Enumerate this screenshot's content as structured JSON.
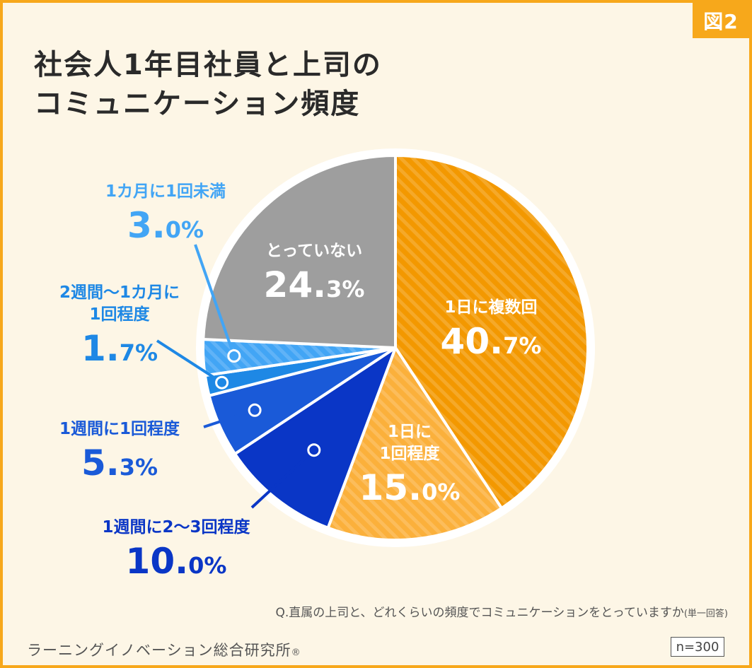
{
  "badge": "図2",
  "title_line1": "社会人1年目社員と上司の",
  "title_line2": "コミュニケーション頻度",
  "chart_data": {
    "type": "pie",
    "unit": "%",
    "slices": [
      {
        "label": "1日に複数回",
        "value": 40.7,
        "color": "#f39800",
        "pattern": true
      },
      {
        "label": "1日に1回程度",
        "value": 15.0,
        "color": "#fbb03b",
        "pattern": true
      },
      {
        "label": "1週間に2～3回程度",
        "value": 10.0,
        "color": "#0a36c6",
        "pattern": false
      },
      {
        "label": "1週間に1回程度",
        "value": 5.3,
        "color": "#1a5ad8",
        "pattern": false
      },
      {
        "label": "2週間～1カ月に1回程度",
        "value": 1.7,
        "color": "#1e88e5",
        "pattern": false
      },
      {
        "label": "1カ月に1回未満",
        "value": 3.0,
        "color": "#42a5f5",
        "pattern": true
      },
      {
        "label": "とっていない",
        "value": 24.3,
        "color": "#9e9e9e",
        "pattern": false
      }
    ]
  },
  "labels": {
    "daily_multi": {
      "l1": "1日に複数回",
      "int": "40.",
      "dec": "7%"
    },
    "daily_once": {
      "l1": "1日に",
      "l2": "1回程度",
      "int": "15.",
      "dec": "0%"
    },
    "weekly_23": {
      "l1": "1週間に2～3回程度",
      "int": "10.",
      "dec": "0%"
    },
    "weekly_1": {
      "l1": "1週間に1回程度",
      "int": "5.",
      "dec": "3%"
    },
    "biweekly": {
      "l1": "2週間～1カ月に",
      "l2": "1回程度",
      "int": "1.",
      "dec": "7%"
    },
    "monthly_less": {
      "l1": "1カ月に1回未満",
      "int": "3.",
      "dec": "0%"
    },
    "none": {
      "l1": "とっていない",
      "int": "24.",
      "dec": "3%"
    }
  },
  "question_main": "Q.直属の上司と、どれくらいの頻度でコミュニケーションをとっていますか",
  "question_note": "(単一回答)",
  "source_main": "ラーニングイノベーション総合研究所",
  "source_mark": "®",
  "sample": "n=300"
}
